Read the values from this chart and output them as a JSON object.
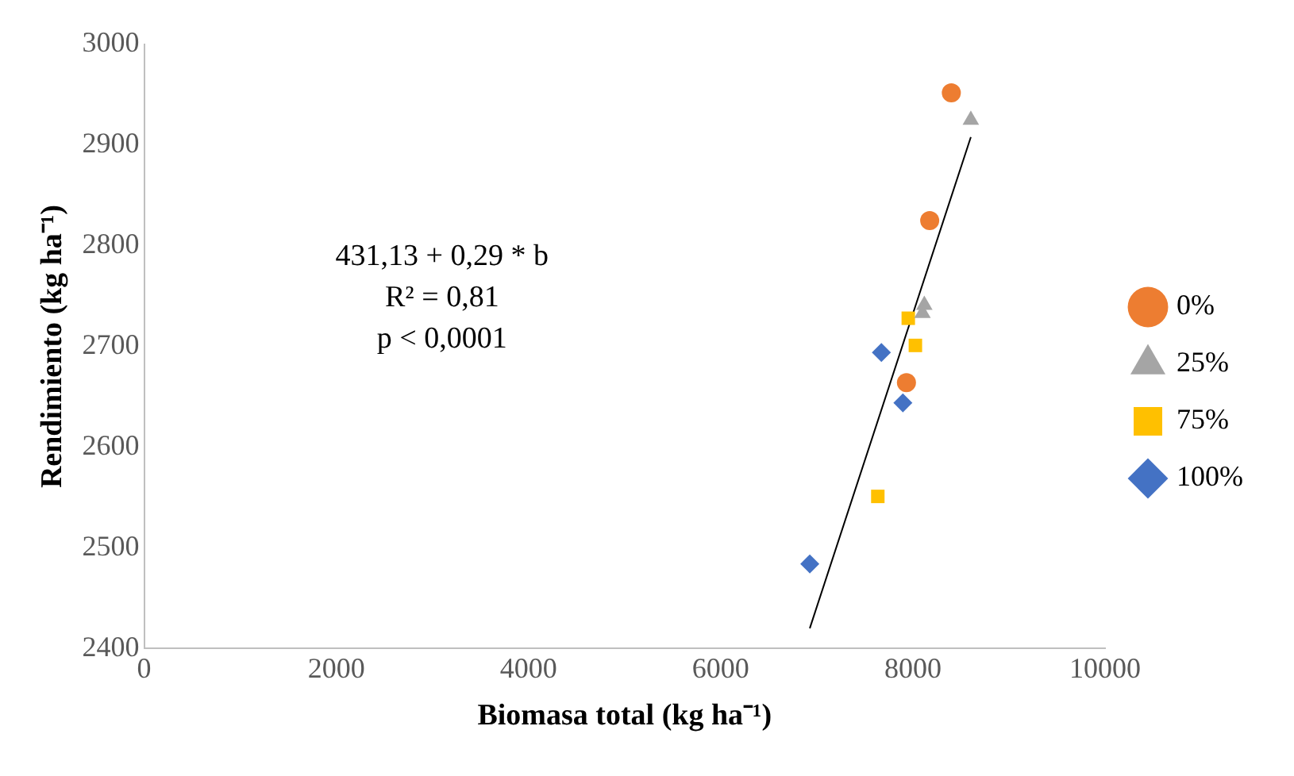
{
  "chart_data": {
    "type": "scatter",
    "xlabel": "Biomasa total (kg ha⁻¹)",
    "ylabel": "Rendimiento (kg ha⁻¹)",
    "xlim": [
      0,
      10000
    ],
    "xticks": [
      0,
      2000,
      4000,
      6000,
      8000,
      10000
    ],
    "ylim": [
      2400,
      3000
    ],
    "yticks": [
      2400,
      2500,
      2600,
      2700,
      2800,
      2900,
      3000
    ],
    "grid": false,
    "legend": "right",
    "annotations": [
      "431,13 + 0,29 * b",
      "R² = 0,81",
      "p < 0,0001"
    ],
    "series": [
      {
        "name": "0%",
        "color": "#ed7d31",
        "marker": "circle",
        "x": [
          8400,
          8175,
          7933
        ],
        "values": [
          2952,
          2825,
          2664
        ]
      },
      {
        "name": "25%",
        "color": "#a5a5a5",
        "marker": "triangle",
        "x": [
          8603,
          8119,
          8100
        ],
        "values": [
          2925,
          2741,
          2733
        ]
      },
      {
        "name": "75%",
        "color": "#ffc000",
        "marker": "square",
        "x": [
          7952,
          8026,
          7635
        ],
        "values": [
          2728,
          2701,
          2551
        ]
      },
      {
        "name": "100%",
        "color": "#4472c4",
        "marker": "diamond",
        "x": [
          7672,
          7896,
          6927
        ],
        "values": [
          2694,
          2644,
          2484
        ]
      },
      {
        "type": "line",
        "color": "#000000",
        "marker": "none",
        "x": [
          6927,
          8603
        ],
        "values": [
          2420,
          2908
        ]
      }
    ]
  }
}
